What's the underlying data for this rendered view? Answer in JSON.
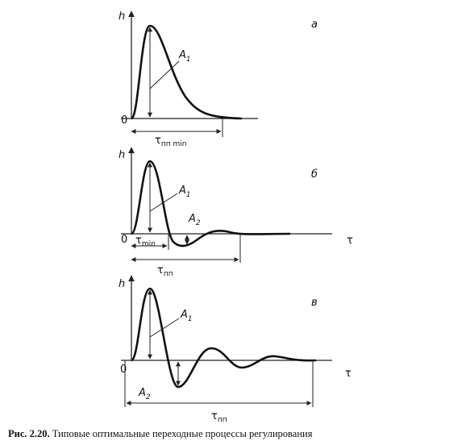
{
  "panels": [
    {
      "label": "а",
      "y_axis": "h",
      "origin": "0",
      "amplitude_1": {
        "main": "A",
        "sub": "1"
      },
      "duration": {
        "main": "τ",
        "sub": "пп min"
      }
    },
    {
      "label": "б",
      "y_axis": "h",
      "x_axis": "τ",
      "origin": "0",
      "amplitude_1": {
        "main": "A",
        "sub": "1"
      },
      "amplitude_2": {
        "main": "A",
        "sub": "2"
      },
      "min_time": {
        "main": "τ",
        "sub": "min"
      },
      "duration": {
        "main": "τ",
        "sub": "пп"
      }
    },
    {
      "label": "в",
      "y_axis": "h",
      "x_axis": "τ",
      "origin": "0",
      "amplitude_1": {
        "main": "A",
        "sub": "1"
      },
      "amplitude_2": {
        "main": "A",
        "sub": "2"
      },
      "duration": {
        "main": "τ",
        "sub": "пп"
      }
    }
  ],
  "caption": {
    "number": "Рис. 2.20.",
    "text": "Типовые оптимальные переходные процессы регулирования"
  }
}
